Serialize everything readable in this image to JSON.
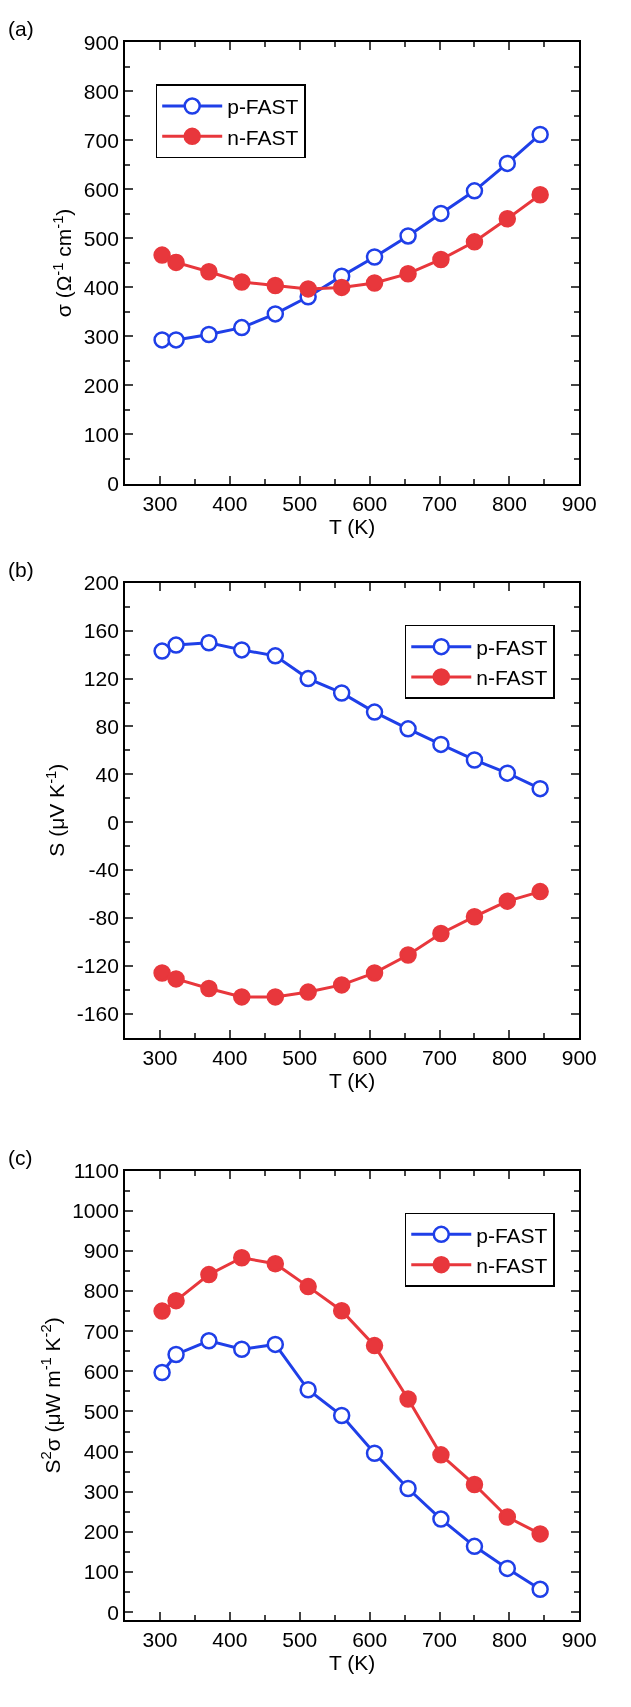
{
  "chart_data": [
    {
      "type": "line",
      "annotations": [
        "(a)"
      ],
      "xlabel": "T (K)",
      "ylabel": "σ (Ω$^{-1}$ cm$^{-1}$)",
      "x": [
        303,
        323,
        370,
        417,
        465,
        512,
        560,
        607,
        655,
        702,
        750,
        797,
        844
      ],
      "xlim": [
        250,
        900
      ],
      "xticks": [
        300,
        400,
        500,
        600,
        700,
        800,
        900
      ],
      "ylim": [
        0,
        900
      ],
      "yticks": [
        0,
        100,
        200,
        300,
        400,
        500,
        600,
        700,
        800,
        900
      ],
      "legend": "top left",
      "line_style": "solid",
      "series": [
        {
          "name": "p-FAST",
          "color": "#1f3fe8",
          "marker": "circle-open",
          "values": [
            293,
            293,
            304,
            318,
            346,
            381,
            423,
            462,
            505,
            551,
            597,
            653,
            712
          ]
        },
        {
          "name": "n-FAST",
          "color": "#e8373c",
          "marker": "circle",
          "values": [
            466,
            451,
            432,
            411,
            404,
            397,
            400,
            409,
            428,
            457,
            493,
            540,
            589
          ]
        }
      ]
    },
    {
      "type": "line",
      "annotations": [
        "(b)"
      ],
      "xlabel": "T (K)",
      "ylabel": "S (μV K$^{-1}$)",
      "x": [
        303,
        323,
        370,
        417,
        465,
        512,
        560,
        607,
        655,
        702,
        750,
        797,
        844
      ],
      "xlim": [
        250,
        900
      ],
      "xticks": [
        300,
        400,
        500,
        600,
        700,
        800,
        900
      ],
      "ylim": [
        -180,
        200
      ],
      "yticks": [
        -160,
        -120,
        -80,
        -40,
        0,
        40,
        80,
        120,
        160,
        200
      ],
      "legend": "top right",
      "line_style": "solid",
      "series": [
        {
          "name": "p-FAST",
          "color": "#1f3fe8",
          "marker": "circle-open",
          "values": [
            143,
            148,
            150,
            144,
            139,
            120,
            108,
            92,
            78,
            65,
            52,
            41,
            28
          ]
        },
        {
          "name": "n-FAST",
          "color": "#e8373c",
          "marker": "circle",
          "values": [
            -126,
            -131,
            -139,
            -146,
            -146,
            -142,
            -136,
            -126,
            -111,
            -93,
            -79,
            -66,
            -58
          ]
        }
      ]
    },
    {
      "type": "line",
      "annotations": [
        "(c)"
      ],
      "xlabel": "T (K)",
      "ylabel": "S$^{2}$σ (μW m$^{-1}$ K$^{-2}$)",
      "x": [
        303,
        323,
        370,
        417,
        465,
        512,
        560,
        607,
        655,
        702,
        750,
        797,
        844
      ],
      "xlim": [
        250,
        900
      ],
      "xticks": [
        300,
        400,
        500,
        600,
        700,
        800,
        900
      ],
      "ylim": [
        -20,
        1100
      ],
      "yticks": [
        0,
        100,
        200,
        300,
        400,
        500,
        600,
        700,
        800,
        900,
        1000,
        1100
      ],
      "legend": "top right",
      "line_style": "solid",
      "series": [
        {
          "name": "p-FAST",
          "color": "#1f3fe8",
          "marker": "circle-open",
          "values": [
            597,
            642,
            676,
            655,
            667,
            554,
            490,
            396,
            308,
            232,
            164,
            109,
            57
          ]
        },
        {
          "name": "n-FAST",
          "color": "#e8373c",
          "marker": "circle",
          "values": [
            750,
            776,
            841,
            883,
            868,
            811,
            751,
            664,
            531,
            392,
            318,
            237,
            195
          ]
        }
      ]
    }
  ]
}
